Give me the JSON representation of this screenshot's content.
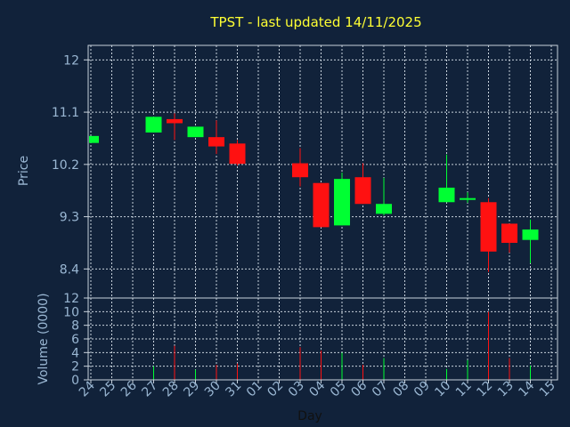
{
  "chart_data": {
    "type": "candlestick",
    "title": "TPST - last updated 14/11/2025",
    "xlabel": "Day",
    "price_panel": {
      "ylabel": "Price",
      "ylim": [
        7.9,
        12.25
      ],
      "yticks": [
        "8.4",
        "9.3",
        "10.2",
        "11.1",
        "12"
      ],
      "grid": true
    },
    "volume_panel": {
      "ylabel": "Volume (0000)",
      "ylim": [
        0,
        12
      ],
      "yticks": [
        "0",
        "2",
        "4",
        "6",
        "8",
        "10",
        "12"
      ],
      "grid": true
    },
    "x_ticks": [
      "24",
      "25",
      "26",
      "27",
      "28",
      "29",
      "30",
      "31",
      "01",
      "02",
      "03",
      "04",
      "05",
      "06",
      "07",
      "08",
      "09",
      "10",
      "11",
      "12",
      "13",
      "14",
      "15"
    ],
    "candles": [
      {
        "day": "24",
        "open": 10.57,
        "close": 10.69,
        "high": 10.69,
        "low": 10.57,
        "volume": 0.0
      },
      {
        "day": "27",
        "open": 10.75,
        "close": 11.02,
        "high": 11.02,
        "low": 10.75,
        "volume": 2.0
      },
      {
        "day": "28",
        "open": 10.98,
        "close": 10.91,
        "high": 11.08,
        "low": 10.62,
        "volume": 5.0
      },
      {
        "day": "29",
        "open": 10.67,
        "close": 10.85,
        "high": 10.85,
        "low": 10.67,
        "volume": 1.5
      },
      {
        "day": "30",
        "open": 10.67,
        "close": 10.51,
        "high": 10.96,
        "low": 10.38,
        "volume": 2.2
      },
      {
        "day": "31",
        "open": 10.56,
        "close": 10.21,
        "high": 10.62,
        "low": 10.18,
        "volume": 2.4
      },
      {
        "day": "03",
        "open": 10.22,
        "close": 9.98,
        "high": 10.48,
        "low": 9.82,
        "volume": 4.8
      },
      {
        "day": "04",
        "open": 9.88,
        "close": 9.12,
        "high": 9.88,
        "low": 9.12,
        "volume": 4.3
      },
      {
        "day": "05",
        "open": 9.15,
        "close": 9.95,
        "high": 10.06,
        "low": 9.15,
        "volume": 4.0
      },
      {
        "day": "06",
        "open": 9.98,
        "close": 9.52,
        "high": 10.22,
        "low": 9.52,
        "volume": 2.2
      },
      {
        "day": "07",
        "open": 9.35,
        "close": 9.52,
        "high": 9.97,
        "low": 9.32,
        "volume": 3.2
      },
      {
        "day": "10",
        "open": 9.55,
        "close": 9.8,
        "high": 10.37,
        "low": 9.55,
        "volume": 1.6
      },
      {
        "day": "11",
        "open": 9.62,
        "close": 9.62,
        "high": 9.72,
        "low": 9.54,
        "volume": 2.9
      },
      {
        "day": "12",
        "open": 9.55,
        "close": 8.7,
        "high": 9.62,
        "low": 8.35,
        "volume": 10.0
      },
      {
        "day": "13",
        "open": 9.18,
        "close": 8.85,
        "high": 9.18,
        "low": 8.68,
        "volume": 3.2
      },
      {
        "day": "14",
        "open": 8.9,
        "close": 9.08,
        "high": 9.25,
        "low": 8.5,
        "volume": 2.1
      }
    ],
    "colors": {
      "background": "#11223a",
      "up": "#00ff33",
      "down": "#ff1111",
      "grid": "#c8d2dc",
      "axis": "#c8d2dc",
      "text": "#9ab7d3",
      "title": "#ffff33",
      "xlabel": "#111111"
    }
  }
}
